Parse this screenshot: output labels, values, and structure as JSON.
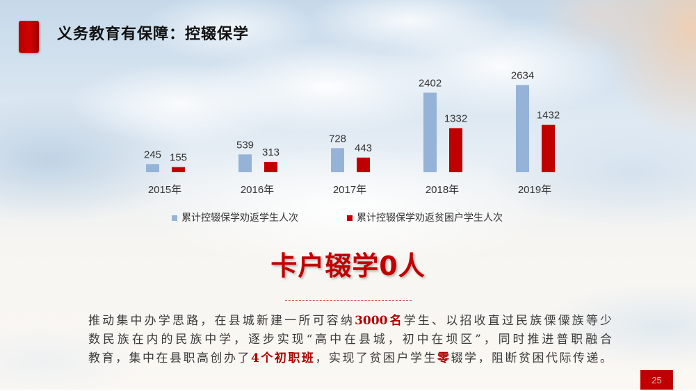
{
  "slide": {
    "title": "义务教育有保障：控辍保学",
    "headline": "卡户辍学0人",
    "paragraph": {
      "line1": {
        "pre": "推动集中办学思路，在县城新建一所可容纳",
        "highlight": "3000名",
        "post": "学生、以招收直过民族傈僳族等少"
      },
      "line2": {
        "text": "数民族在内的民族中学，逐步实现“高中在县城，初中在坝区”，同时推进普职融合"
      },
      "line3": {
        "pre": "教育，集中在县职高创办了",
        "highlight1": "4个初职班",
        "mid": "，实现了贫困户学生",
        "highlight2": "零",
        "post": "辍学，阻断贫困代际传递。"
      }
    },
    "page_number": "25"
  },
  "colors": {
    "accent_red": "#c00000",
    "series_blue": "#95b3d7",
    "text_dark": "#333333"
  },
  "chart_data": {
    "type": "bar",
    "categories": [
      "2015年",
      "2016年",
      "2017年",
      "2018年",
      "2019年"
    ],
    "series": [
      {
        "name": "累计控辍保学劝返学生人次",
        "values": [
          245,
          539,
          728,
          2402,
          2634
        ],
        "color": "#95b3d7"
      },
      {
        "name": "累计控辍保学劝返贫困户学生人次",
        "values": [
          155,
          313,
          443,
          1332,
          1432
        ],
        "color": "#c00000"
      }
    ],
    "ylim": [
      0,
      3000
    ],
    "grid": false,
    "y_axis_visible": false,
    "data_labels": true,
    "legend_position": "bottom"
  }
}
